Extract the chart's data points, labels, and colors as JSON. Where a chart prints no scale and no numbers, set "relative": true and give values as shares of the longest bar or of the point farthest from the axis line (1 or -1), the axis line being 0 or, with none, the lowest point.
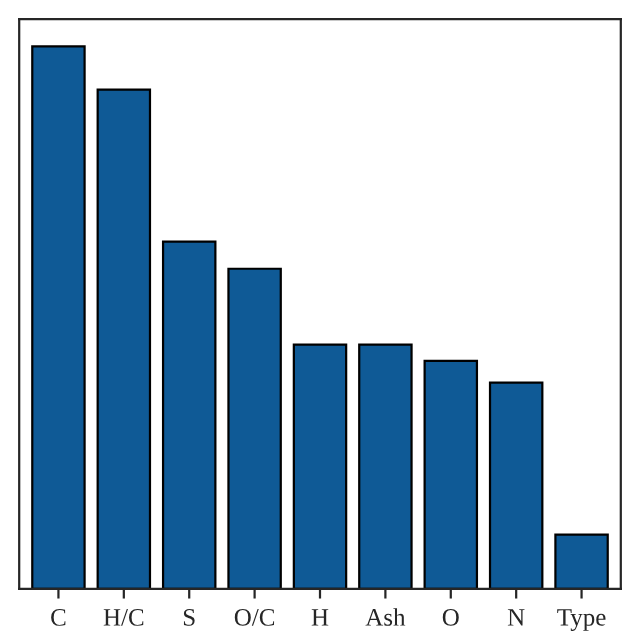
{
  "chart_data": {
    "type": "bar",
    "relative": true,
    "tick_labels": "x",
    "categories": [
      "C",
      "H/C",
      "S",
      "O/C",
      "H",
      "Ash",
      "O",
      "N",
      "Type"
    ],
    "values": [
      1,
      0.92,
      0.64,
      0.59,
      0.45,
      0.45,
      0.42,
      0.38,
      0.1
    ],
    "color": "#0f5a96",
    "grid": false,
    "legend": false
  }
}
